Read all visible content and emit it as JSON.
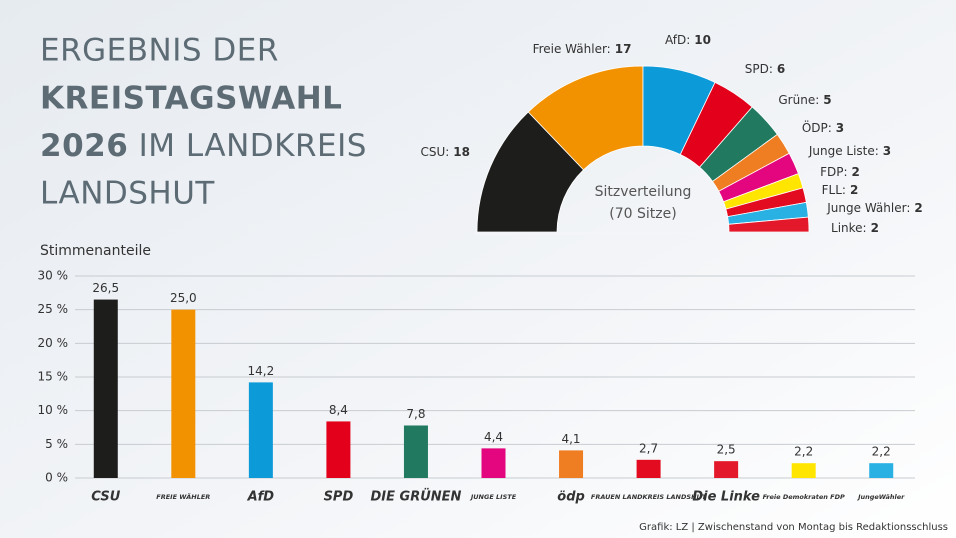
{
  "header": {
    "title": [
      "ERGEBNIS DER",
      "KREISTAGSWAHL",
      "2026",
      "IM LANDKREIS",
      "LANDSHUT"
    ]
  },
  "chart_data": [
    {
      "type": "semicircle",
      "center_label": [
        "Sitzverteilung",
        "(70 Sitze)"
      ],
      "categories": [
        "CSU:",
        "Freie Wähler:",
        "AfD:",
        "SPD:",
        "Grüne:",
        "ÖDP:",
        "Junge Liste:",
        "FDP:",
        "FLL:",
        "Junge Wähler:",
        "Linke:"
      ],
      "values": [
        18,
        17,
        10,
        6,
        5,
        3,
        3,
        2,
        2,
        2,
        2
      ],
      "colors": [
        "#1d1d1b",
        "#f39200",
        "#0d9ad8",
        "#e2001a",
        "#217a5f",
        "#ef7d22",
        "#e4067e",
        "#ffe500",
        "#e30b20",
        "#2ab1e4",
        "#e3182a"
      ]
    },
    {
      "type": "bar",
      "y_label": "Stimmenanteile",
      "categories": [
        "CSU",
        "FREIE WÄHLER",
        "AfD",
        "SPD",
        "DIE GRÜNEN",
        "JUNGE LISTE",
        "ödp",
        "FRAUEN LANDKREIS LANDSHUT",
        "Die Linke",
        "Freie Demokraten FDP",
        "JungeWähler"
      ],
      "values": [
        26.5,
        25.0,
        14.2,
        8.4,
        7.8,
        4.4,
        4.1,
        2.7,
        2.5,
        2.2,
        2.2
      ],
      "value_labels": [
        "26,5",
        "25,0",
        "14,2",
        "8,4",
        "7,8",
        "4,4",
        "4,1",
        "2,7",
        "2,5",
        "2,2",
        "2,2"
      ],
      "colors": [
        "#1d1d1b",
        "#f39200",
        "#0d9ad8",
        "#e2001a",
        "#217a5f",
        "#e4067e",
        "#ef7d22",
        "#e30b20",
        "#e3182a",
        "#ffe500",
        "#2ab1e4"
      ],
      "ylim": [
        0,
        30
      ],
      "yticks": [
        {
          "value": 0,
          "label": "0 %"
        },
        {
          "value": 5,
          "label": "5 %"
        },
        {
          "value": 10,
          "label": "10 %"
        },
        {
          "value": 15,
          "label": "15 %"
        },
        {
          "value": 20,
          "label": "20 %"
        },
        {
          "value": 25,
          "label": "25 %"
        },
        {
          "value": 30,
          "label": "30 %"
        }
      ],
      "grid": true,
      "source": "Grafik: LZ | Zwischenstand von Montag bis Redaktionsschluss"
    }
  ]
}
